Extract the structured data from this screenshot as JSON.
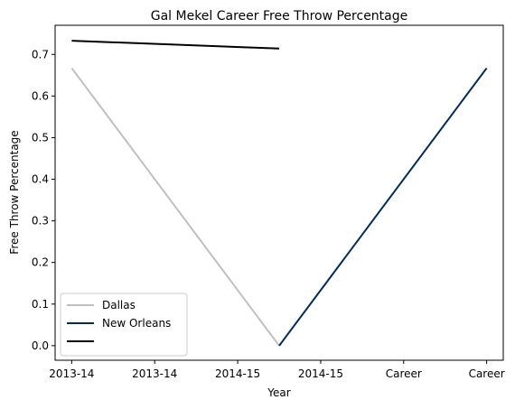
{
  "chart_data": {
    "type": "line",
    "title": "Gal Mekel Career Free Throw Percentage",
    "xlabel": "Year",
    "ylabel": "Free Throw Percentage",
    "categories": [
      "2013-14",
      "2013-14",
      "2014-15",
      "2014-15",
      "Career",
      "Career"
    ],
    "ylim": [
      -0.035,
      0.77
    ],
    "yticks": [
      0.0,
      0.1,
      0.2,
      0.3,
      0.4,
      0.5,
      0.6,
      0.7
    ],
    "ytick_labels": [
      "0.0",
      "0.1",
      "0.2",
      "0.3",
      "0.4",
      "0.5",
      "0.6",
      "0.7"
    ],
    "grid": false,
    "legend_placement": "lower-left",
    "series": [
      {
        "name": "Dallas",
        "color": "#c0c0c0",
        "x": [
          0,
          2.5
        ],
        "values": [
          0.667,
          0.0
        ]
      },
      {
        "name": "New Orleans",
        "color": "#002b5c",
        "x": [
          2.5,
          5
        ],
        "values": [
          0.0,
          0.667
        ]
      },
      {
        "name": "",
        "color": "#000000",
        "x": [
          0,
          2.5
        ],
        "values": [
          0.733,
          0.714
        ]
      }
    ]
  }
}
